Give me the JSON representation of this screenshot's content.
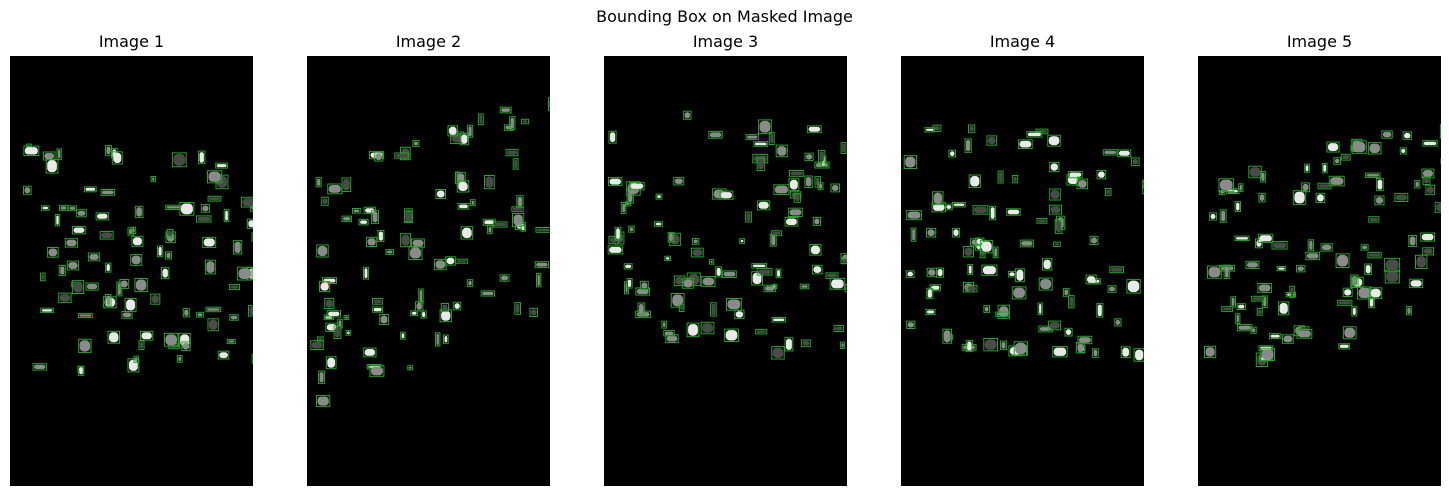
{
  "figure": {
    "title": "Bounding Box on Masked Image",
    "panels": [
      {
        "title": "Image 1"
      },
      {
        "title": "Image 2"
      },
      {
        "title": "Image 3"
      },
      {
        "title": "Image 4"
      },
      {
        "title": "Image 5"
      }
    ]
  },
  "colors": {
    "background": "#ffffff",
    "mask_background": "#000000",
    "bounding_box": "#1faa1f",
    "blob_bright": "#e9e9e9",
    "blob_gray": "#8a8a8a",
    "blob_dark": "#4a4a4a"
  }
}
